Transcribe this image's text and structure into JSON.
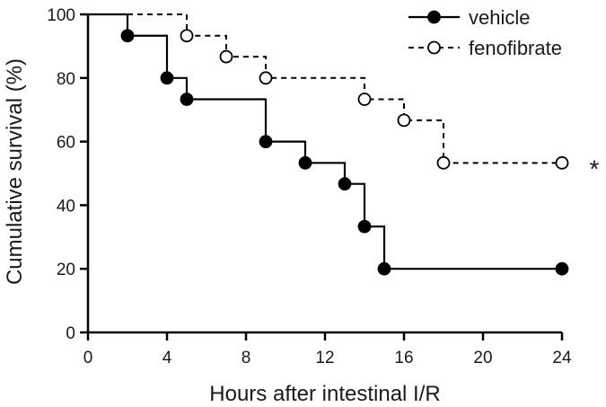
{
  "chart_data": {
    "type": "line",
    "title": "",
    "xlabel": "Hours after intestinal I/R",
    "ylabel": "Cumulative survival (%)",
    "xlim": [
      0,
      24
    ],
    "ylim": [
      0,
      100
    ],
    "xticks": [
      0,
      4,
      8,
      12,
      16,
      20,
      24
    ],
    "yticks": [
      0,
      20,
      40,
      60,
      80,
      100
    ],
    "grid": false,
    "legend_position": "top-right",
    "step": true,
    "series": [
      {
        "name": "vehicle",
        "color": "#000000",
        "marker": "filled-circle",
        "line_style": "solid",
        "x": [
          2,
          4,
          5,
          9,
          11,
          13,
          14,
          15,
          24
        ],
        "y": [
          93.3,
          80,
          73.3,
          60,
          53.3,
          46.7,
          33.3,
          20,
          20
        ]
      },
      {
        "name": "fenofibrate",
        "color": "#000000",
        "marker": "open-circle",
        "line_style": "dashed",
        "x": [
          5,
          7,
          9,
          14,
          16,
          18,
          24
        ],
        "y": [
          93.3,
          86.7,
          80,
          73.3,
          66.7,
          53.3,
          53.3
        ]
      }
    ],
    "annotations": [
      {
        "text": "*",
        "x": 24,
        "y": 53.3
      }
    ]
  }
}
